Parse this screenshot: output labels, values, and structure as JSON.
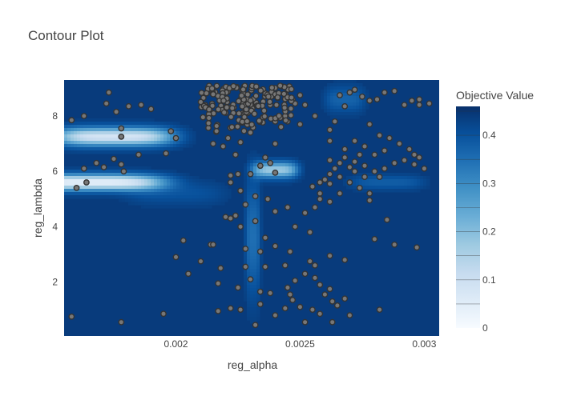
{
  "chart_data": {
    "type": "contour",
    "title": "Contour Plot",
    "xlabel": "reg_alpha",
    "ylabel": "reg_lambda",
    "xlim": [
      0.00155,
      0.00306
    ],
    "ylim": [
      0.05,
      9.3
    ],
    "x_ticks": [
      0.002,
      0.0025,
      0.003
    ],
    "x_tick_labels": [
      "0.002",
      "0.0025",
      "0.003"
    ],
    "y_ticks": [
      2,
      4,
      6,
      8
    ],
    "y_tick_labels": [
      "2",
      "4",
      "6",
      "8"
    ],
    "colorbar": {
      "title": "Objective Value",
      "range": [
        0,
        0.46
      ],
      "ticks": [
        0,
        0.1,
        0.2,
        0.3,
        0.4
      ],
      "tick_labels": [
        "0",
        "0.1",
        "0.2",
        "0.3",
        "0.4"
      ],
      "colors": [
        "#f7fbff",
        "#deebf7",
        "#c6dbef",
        "#9ecae1",
        "#6baed6",
        "#4292c6",
        "#2171b5",
        "#08519c",
        "#08306b"
      ]
    },
    "background_value": 0.44,
    "low_regions": [
      {
        "x": 0.00175,
        "y": 7.25,
        "sx": 0.00024,
        "sy": 0.32,
        "depth": 0.36
      },
      {
        "x": 0.00165,
        "y": 5.6,
        "sx": 0.0003,
        "sy": 0.28,
        "depth": 0.4
      },
      {
        "x": 0.0024,
        "y": 6.05,
        "sx": 9e-05,
        "sy": 0.28,
        "depth": 0.27
      },
      {
        "x": 0.00231,
        "y": 3.6,
        "sx": 3e-05,
        "sy": 2.0,
        "depth": 0.09
      },
      {
        "x": 0.00268,
        "y": 8.6,
        "sx": 8e-05,
        "sy": 0.45,
        "depth": 0.07
      },
      {
        "x": 0.00285,
        "y": 5.6,
        "sx": 0.00015,
        "sy": 0.25,
        "depth": 0.06
      },
      {
        "x": 0.002,
        "y": 5.2,
        "sx": 0.0002,
        "sy": 0.4,
        "depth": 0.04
      }
    ],
    "trials": [
      [
        0.00178,
        7.25
      ],
      [
        0.00164,
        5.6
      ],
      [
        0.0024,
        5.95
      ],
      [
        0.00163,
        8.0
      ],
      [
        0.00158,
        7.85
      ],
      [
        0.0016,
        5.4
      ],
      [
        0.00158,
        0.75
      ],
      [
        0.00195,
        0.85
      ],
      [
        0.00173,
        8.85
      ],
      [
        0.00172,
        8.45
      ],
      [
        0.00176,
        8.15
      ],
      [
        0.00178,
        7.55
      ],
      [
        0.00181,
        8.35
      ],
      [
        0.00186,
        8.4
      ],
      [
        0.0019,
        8.25
      ],
      [
        0.00198,
        7.45
      ],
      [
        0.002,
        7.2
      ],
      [
        0.00196,
        6.65
      ],
      [
        0.00168,
        6.3
      ],
      [
        0.00171,
        6.15
      ],
      [
        0.00175,
        6.45
      ],
      [
        0.00178,
        6.25
      ],
      [
        0.00179,
        6.0
      ],
      [
        0.00185,
        6.6
      ],
      [
        0.00163,
        6.1
      ],
      [
        0.00178,
        0.55
      ],
      [
        0.00203,
        3.5
      ],
      [
        0.002,
        2.9
      ],
      [
        0.00205,
        2.3
      ],
      [
        0.0021,
        2.75
      ],
      [
        0.00218,
        2.5
      ],
      [
        0.00217,
        1.95
      ],
      [
        0.00214,
        3.35
      ],
      [
        0.00217,
        0.95
      ],
      [
        0.00222,
        1.05
      ],
      [
        0.00225,
        1.8
      ],
      [
        0.00226,
        1.0
      ],
      [
        0.00228,
        2.55
      ],
      [
        0.0023,
        2.1
      ],
      [
        0.00232,
        0.45
      ],
      [
        0.00234,
        1.2
      ],
      [
        0.00234,
        1.65
      ],
      [
        0.00234,
        3.1
      ],
      [
        0.00232,
        4.2
      ],
      [
        0.00226,
        4.0
      ],
      [
        0.00224,
        4.4
      ],
      [
        0.00222,
        4.3
      ],
      [
        0.00228,
        4.8
      ],
      [
        0.00226,
        5.3
      ],
      [
        0.00222,
        5.6
      ],
      [
        0.00225,
        5.9
      ],
      [
        0.0023,
        5.9
      ],
      [
        0.00234,
        6.2
      ],
      [
        0.00238,
        6.3
      ],
      [
        0.00237,
        5.0
      ],
      [
        0.0024,
        4.55
      ],
      [
        0.00248,
        4.0
      ],
      [
        0.00244,
        2.6
      ],
      [
        0.00248,
        2.05
      ],
      [
        0.00252,
        2.3
      ],
      [
        0.00256,
        2.15
      ],
      [
        0.00258,
        1.9
      ],
      [
        0.0026,
        1.55
      ],
      [
        0.00245,
        1.8
      ],
      [
        0.00247,
        1.35
      ],
      [
        0.0025,
        1.1
      ],
      [
        0.00255,
        1.0
      ],
      [
        0.00258,
        0.85
      ],
      [
        0.00263,
        0.55
      ],
      [
        0.00265,
        1.15
      ],
      [
        0.0027,
        0.8
      ],
      [
        0.00268,
        1.4
      ],
      [
        0.00262,
        1.75
      ],
      [
        0.00268,
        2.8
      ],
      [
        0.0028,
        3.55
      ],
      [
        0.00282,
        1.0
      ],
      [
        0.00285,
        4.25
      ],
      [
        0.00288,
        3.35
      ],
      [
        0.00297,
        3.25
      ],
      [
        0.00262,
        2.95
      ],
      [
        0.00254,
        2.75
      ],
      [
        0.00246,
        1.55
      ],
      [
        0.00244,
        1.05
      ],
      [
        0.0024,
        0.8
      ],
      [
        0.00252,
        0.55
      ],
      [
        0.0024,
        3.3
      ],
      [
        0.00238,
        1.6
      ],
      [
        0.00236,
        2.55
      ],
      [
        0.00236,
        3.6
      ],
      [
        0.00256,
        2.6
      ],
      [
        0.00263,
        1.3
      ],
      [
        0.00246,
        3.1
      ],
      [
        0.00254,
        3.8
      ],
      [
        0.00258,
        5.2
      ],
      [
        0.00262,
        5.55
      ],
      [
        0.00255,
        5.45
      ],
      [
        0.00258,
        5.0
      ],
      [
        0.00262,
        4.9
      ],
      [
        0.00256,
        4.7
      ],
      [
        0.00252,
        4.5
      ],
      [
        0.00245,
        4.7
      ],
      [
        0.0024,
        7.0
      ],
      [
        0.00245,
        7.8
      ],
      [
        0.0025,
        7.7
      ],
      [
        0.00256,
        8.0
      ],
      [
        0.00264,
        7.8
      ],
      [
        0.00262,
        7.5
      ],
      [
        0.00262,
        7.1
      ],
      [
        0.00268,
        8.35
      ],
      [
        0.00266,
        8.75
      ],
      [
        0.0027,
        8.85
      ],
      [
        0.00272,
        8.95
      ],
      [
        0.00275,
        8.7
      ],
      [
        0.00278,
        8.55
      ],
      [
        0.00281,
        8.6
      ],
      [
        0.00284,
        8.85
      ],
      [
        0.00288,
        8.9
      ],
      [
        0.00292,
        8.4
      ],
      [
        0.00295,
        8.55
      ],
      [
        0.00298,
        8.4
      ],
      [
        0.00278,
        7.7
      ],
      [
        0.00282,
        7.3
      ],
      [
        0.00286,
        7.2
      ],
      [
        0.0029,
        7.0
      ],
      [
        0.00294,
        6.8
      ],
      [
        0.00296,
        6.6
      ],
      [
        0.00298,
        6.5
      ],
      [
        0.003,
        6.1
      ],
      [
        0.00296,
        6.25
      ],
      [
        0.00292,
        6.4
      ],
      [
        0.00288,
        6.3
      ],
      [
        0.00284,
        6.1
      ],
      [
        0.0028,
        6.0
      ],
      [
        0.00276,
        6.2
      ],
      [
        0.00272,
        6.35
      ],
      [
        0.00268,
        6.5
      ],
      [
        0.00266,
        6.3
      ],
      [
        0.00264,
        6.1
      ],
      [
        0.00262,
        5.9
      ],
      [
        0.0026,
        5.7
      ],
      [
        0.00258,
        5.6
      ],
      [
        0.00266,
        5.8
      ],
      [
        0.0027,
        5.6
      ],
      [
        0.00274,
        5.4
      ],
      [
        0.00278,
        5.2
      ],
      [
        0.00276,
        5.8
      ],
      [
        0.00272,
        6.0
      ],
      [
        0.00268,
        6.8
      ],
      [
        0.00272,
        7.1
      ],
      [
        0.00276,
        6.9
      ],
      [
        0.0028,
        6.6
      ],
      [
        0.00284,
        6.75
      ],
      [
        0.00282,
        5.8
      ],
      [
        0.00278,
        4.95
      ],
      [
        0.00266,
        5.2
      ],
      [
        0.0027,
        6.15
      ],
      [
        0.00274,
        6.6
      ],
      [
        0.00262,
        6.4
      ],
      [
        0.00298,
        8.6
      ],
      [
        0.00302,
        8.45
      ],
      [
        0.00222,
        5.85
      ],
      [
        0.00215,
        3.35
      ],
      [
        0.0022,
        4.35
      ],
      [
        0.00228,
        3.2
      ],
      [
        0.00232,
        5.1
      ],
      [
        0.0023,
        7.4
      ],
      [
        0.00226,
        7.05
      ],
      [
        0.00221,
        7.2
      ],
      [
        0.00219,
        6.9
      ],
      [
        0.00215,
        7.0
      ],
      [
        0.00224,
        6.6
      ],
      [
        0.00236,
        6.5
      ],
      [
        0.0024,
        7.8
      ],
      [
        0.00244,
        8.0
      ],
      [
        0.00238,
        8.4
      ],
      [
        0.00248,
        8.45
      ],
      [
        0.0025,
        8.75
      ],
      [
        0.00252,
        8.4
      ],
      [
        0.00241,
        8.65
      ]
    ],
    "dense_cluster": {
      "x": [
        0.0021,
        0.00248
      ],
      "y": [
        7.4,
        9.1
      ],
      "count": 170
    }
  }
}
